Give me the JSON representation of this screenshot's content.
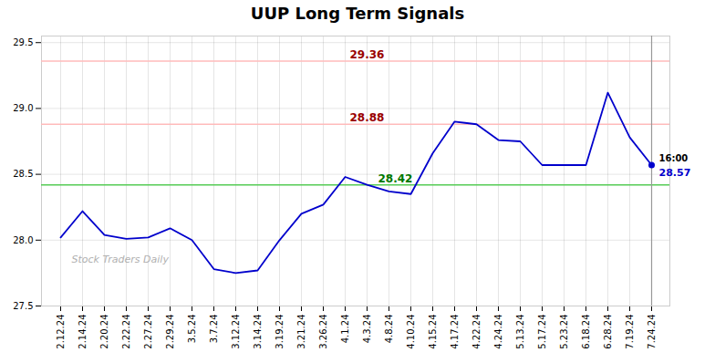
{
  "chart_data": {
    "type": "line",
    "title": "UUP Long Term Signals",
    "categories": [
      "2.12.24",
      "2.14.24",
      "2.20.24",
      "2.22.24",
      "2.27.24",
      "2.29.24",
      "3.5.24",
      "3.7.24",
      "3.12.24",
      "3.14.24",
      "3.19.24",
      "3.21.24",
      "3.26.24",
      "4.1.24",
      "4.3.24",
      "4.8.24",
      "4.10.24",
      "4.15.24",
      "4.17.24",
      "4.22.24",
      "4.24.24",
      "5.13.24",
      "5.17.24",
      "5.23.24",
      "6.18.24",
      "6.28.24",
      "7.19.24",
      "7.24.24"
    ],
    "values": [
      28.02,
      28.22,
      28.04,
      28.01,
      28.02,
      28.09,
      28.0,
      27.78,
      27.75,
      27.77,
      28.0,
      28.2,
      28.27,
      28.48,
      28.42,
      28.37,
      28.35,
      28.66,
      28.9,
      28.88,
      28.76,
      28.75,
      28.57,
      28.57,
      28.57,
      29.12,
      28.78,
      28.57
    ],
    "color": "#0000cc",
    "ylim": [
      27.5,
      29.55
    ],
    "yticks": [
      27.5,
      {
        "value": 28,
        "label": "28.0"
      },
      28.5,
      {
        "value": 29,
        "label": "29.0"
      },
      29.5
    ],
    "grid": true,
    "reference_lines": [
      {
        "y": 29.36,
        "label": "29.36",
        "color": "#ffbbbb",
        "label_color": "#990000"
      },
      {
        "y": 28.88,
        "label": "28.88",
        "color": "#ffbbbb",
        "label_color": "#990000"
      },
      {
        "y": 28.42,
        "label": "28.42",
        "color": "#55cc55",
        "label_color": "#007700"
      },
      {
        "x": "7.24.24",
        "color": "#999999"
      }
    ],
    "annotations": [
      {
        "text": "Stock Traders Daily",
        "x": "2.12.24",
        "y": 27.85,
        "color": "#b0b0b0"
      },
      {
        "text": "16:00",
        "x": "7.24.24",
        "color": "#000000"
      },
      {
        "text": "28.57",
        "x": "7.24.24",
        "color": "#0000cc"
      }
    ]
  }
}
